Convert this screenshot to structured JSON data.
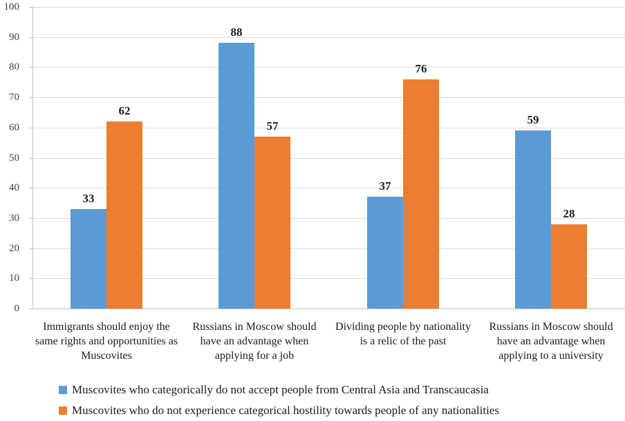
{
  "chart_data": {
    "type": "bar",
    "title": "",
    "xlabel": "",
    "ylabel": "",
    "categories": [
      "Immigrants should enjoy the same rights and opportunities as Muscovites",
      "Russians in Moscow should have an advantage when applying for a job",
      "Dividing people by nationality is a relic of the past",
      "Russians in Moscow should have an advantage when applying to a university"
    ],
    "series": [
      {
        "name": "Muscovites who categorically do not accept people from Central Asia and Transcaucasia",
        "color": "#5B9BD5",
        "values": [
          33,
          88,
          37,
          59
        ]
      },
      {
        "name": "Muscovites who do not experience categorical hostility towards people of any nationalities",
        "color": "#ED7D31",
        "values": [
          62,
          57,
          76,
          28
        ]
      }
    ],
    "ylim": [
      0,
      100
    ],
    "ytick_step": 10,
    "grid": true,
    "show_value_labels": true,
    "legend_position": "bottom-left"
  },
  "colors": {
    "background": "#FFFFFF",
    "gridline": "#D9D9D9",
    "axis_line": "#BFBFBF",
    "y_tick_label": "#404040",
    "value_label": "#1f1f1f",
    "category_label": "#1a1a1a",
    "legend_text": "#1a1a1a"
  }
}
